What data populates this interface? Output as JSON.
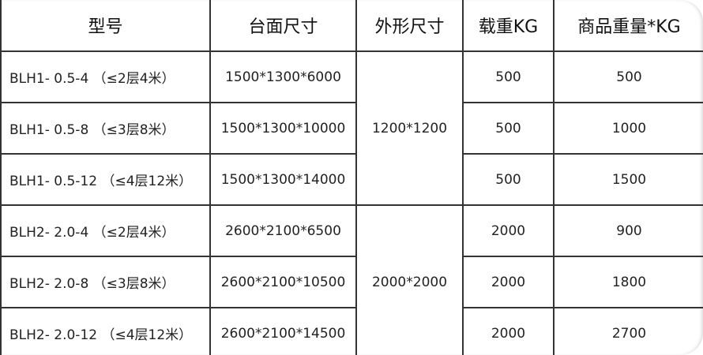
{
  "headers": [
    "型号",
    "台面尺寸",
    "外形尺寸",
    "载重KG",
    "商品重量*KG"
  ],
  "groups": [
    {
      "outer_size": "1200*1200",
      "rows": [
        {
          "model": "BLH1- 0.5-4 （≤2层4米）",
          "table_size": "1500*1300*6000",
          "load": "500",
          "weight": "500"
        },
        {
          "model": "BLH1- 0.5-8 （≤3层8米）",
          "table_size": "1500*1300*10000",
          "load": "500",
          "weight": "1000"
        },
        {
          "model": "BLH1- 0.5-12 （≤4层12米）",
          "table_size": "1500*1300*14000",
          "load": "500",
          "weight": "1500"
        }
      ]
    },
    {
      "outer_size": "2000*2000",
      "rows": [
        {
          "model": "BLH2- 2.0-4 （≤2层4米）",
          "table_size": "2600*2100*6500",
          "load": "2000",
          "weight": "900"
        },
        {
          "model": "BLH2- 2.0-8 （≤3层8米）",
          "table_size": "2600*2100*10500",
          "load": "2000",
          "weight": "1800"
        },
        {
          "model": "BLH2- 2.0-12 （≤4层12米）",
          "table_size": "2600*2100*14500",
          "load": "2000",
          "weight": "2700"
        }
      ]
    }
  ]
}
